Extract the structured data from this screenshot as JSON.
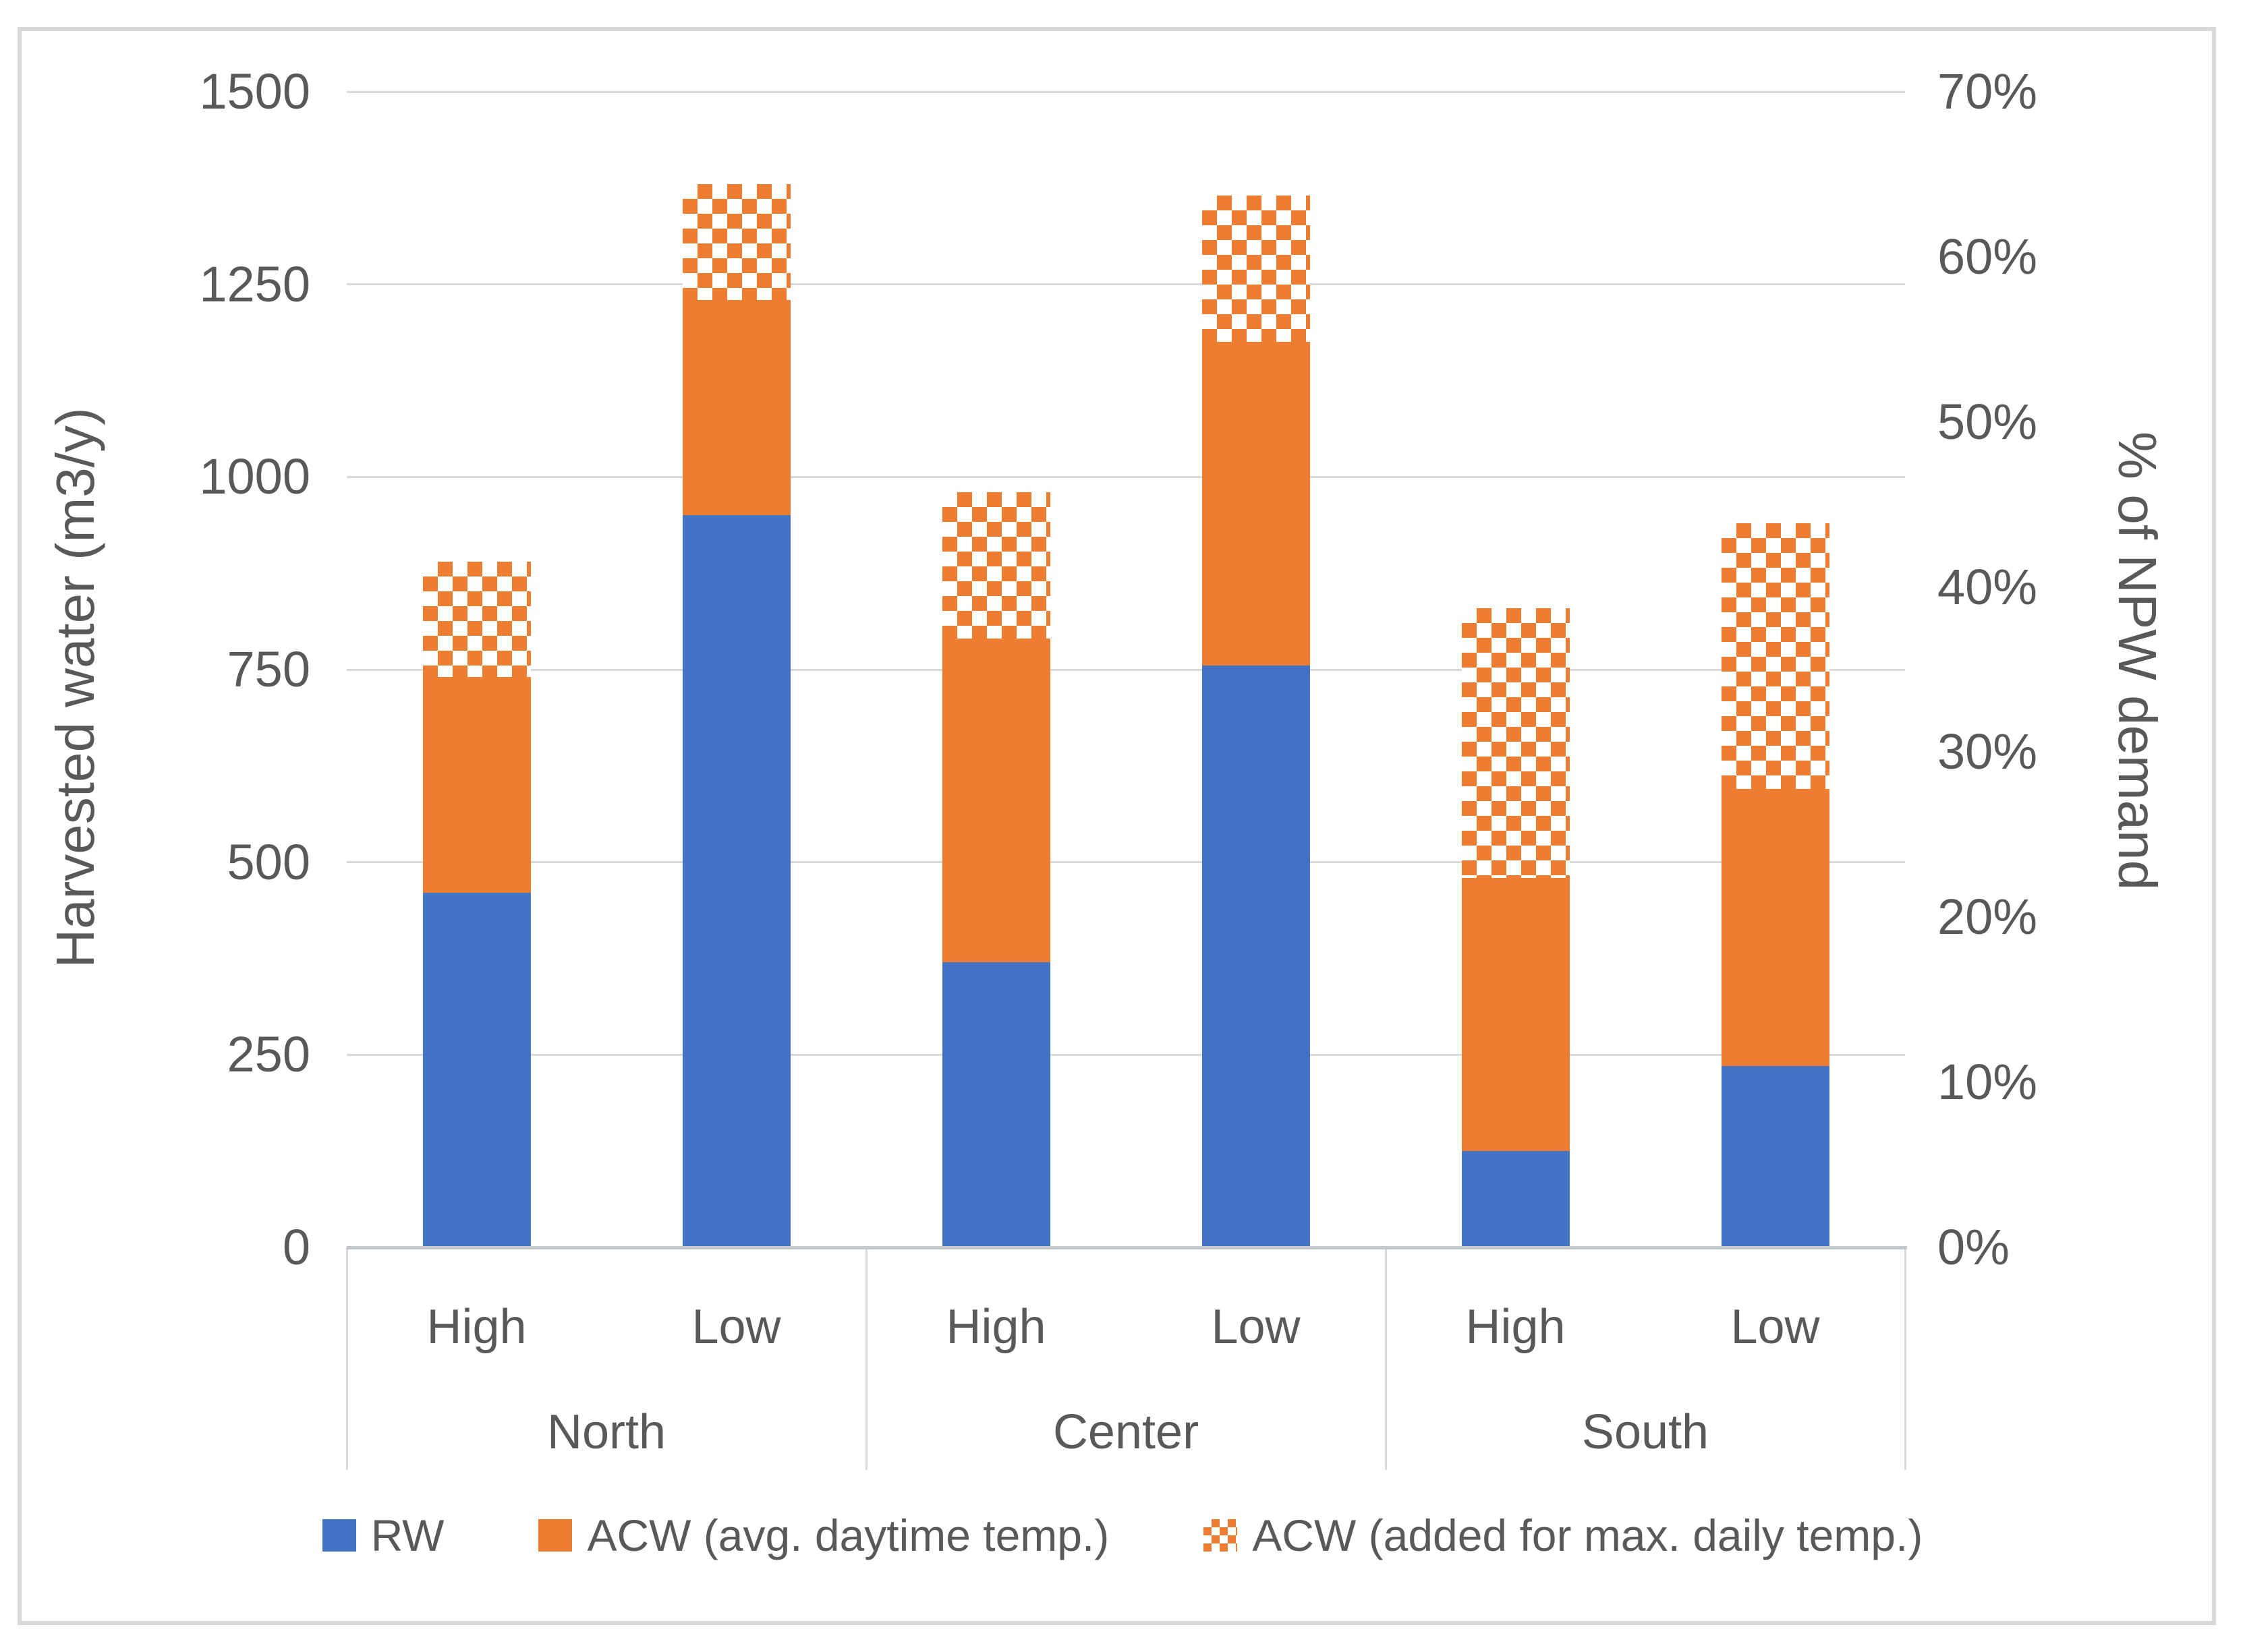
{
  "figure": {
    "kind": "stacked-bar-chart-figure",
    "background": "#ffffff",
    "border_color": "#D8D8D8"
  },
  "chart_data": {
    "type": "bar",
    "stacked": true,
    "title": "",
    "groups": [
      {
        "label": "North",
        "categories": [
          "High",
          "Low"
        ]
      },
      {
        "label": "Center",
        "categories": [
          "High",
          "Low"
        ]
      },
      {
        "label": "South",
        "categories": [
          "High",
          "Low"
        ]
      }
    ],
    "categories_flat": [
      "North High",
      "North Low",
      "Center High",
      "Center Low",
      "South High",
      "South Low"
    ],
    "series": [
      {
        "name": "RW",
        "key": "rw",
        "color": "#4472C4",
        "pattern": "solid",
        "values": [
          460,
          950,
          370,
          755,
          125,
          235
        ]
      },
      {
        "name": "ACW (avg. daytime temp.)",
        "key": "acw-avg",
        "color": "#ED7D31",
        "pattern": "solid",
        "values": [
          280,
          280,
          420,
          420,
          355,
          360
        ]
      },
      {
        "name": "ACW (added for max. daily temp.)",
        "key": "acw-added",
        "color": "#ED7D31",
        "pattern": "checker",
        "values": [
          150,
          150,
          190,
          190,
          350,
          345
        ]
      }
    ],
    "stack_totals": [
      890,
      1380,
      980,
      1365,
      830,
      940
    ],
    "left_axis": {
      "label": "Harvested water (m3/y)",
      "ticks": [
        0,
        250,
        500,
        750,
        1000,
        1250,
        1500
      ],
      "min": 0,
      "max": 1500
    },
    "right_axis": {
      "label": "% of NPW demand",
      "ticks": [
        "0%",
        "10%",
        "20%",
        "30%",
        "40%",
        "50%",
        "60%",
        "70%"
      ],
      "min_pct": 0,
      "max_pct": 70
    },
    "grid": true,
    "legend_position": "bottom",
    "grid_color": "#D9D9D9",
    "text_color": "#595959"
  }
}
